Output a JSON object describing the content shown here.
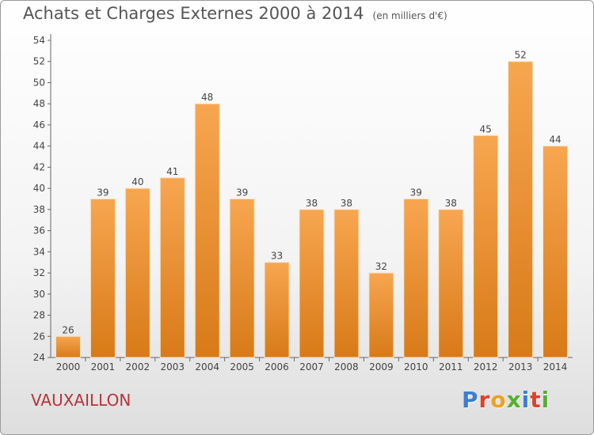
{
  "header": {
    "title": "Achats et Charges Externes 2000 à 2014",
    "unit": "(en milliers d'€)"
  },
  "footer": {
    "commune": "VAUXAILLON",
    "logo": [
      "P",
      "r",
      "o",
      "x",
      "i",
      "t",
      "i"
    ]
  },
  "colors": {
    "bar_top": "#f7a650",
    "bar_bottom": "#d87a18",
    "logo": [
      "#3a7fd0",
      "#e0402c",
      "#f0a020",
      "#55b030",
      "#3a7fd0",
      "#e0402c",
      "#55b030"
    ]
  },
  "chart_data": {
    "type": "bar",
    "categories": [
      "2000",
      "2001",
      "2002",
      "2003",
      "2004",
      "2005",
      "2006",
      "2007",
      "2008",
      "2009",
      "2010",
      "2011",
      "2012",
      "2013",
      "2014"
    ],
    "values": [
      26,
      39,
      40,
      41,
      48,
      39,
      33,
      38,
      38,
      32,
      39,
      38,
      45,
      52,
      44
    ],
    "title": "Achats et Charges Externes 2000 à 2014",
    "ylim": [
      24,
      54
    ],
    "yticks": [
      24,
      26,
      28,
      30,
      32,
      34,
      36,
      38,
      40,
      42,
      44,
      46,
      48,
      50,
      52,
      54
    ],
    "grid": false
  }
}
